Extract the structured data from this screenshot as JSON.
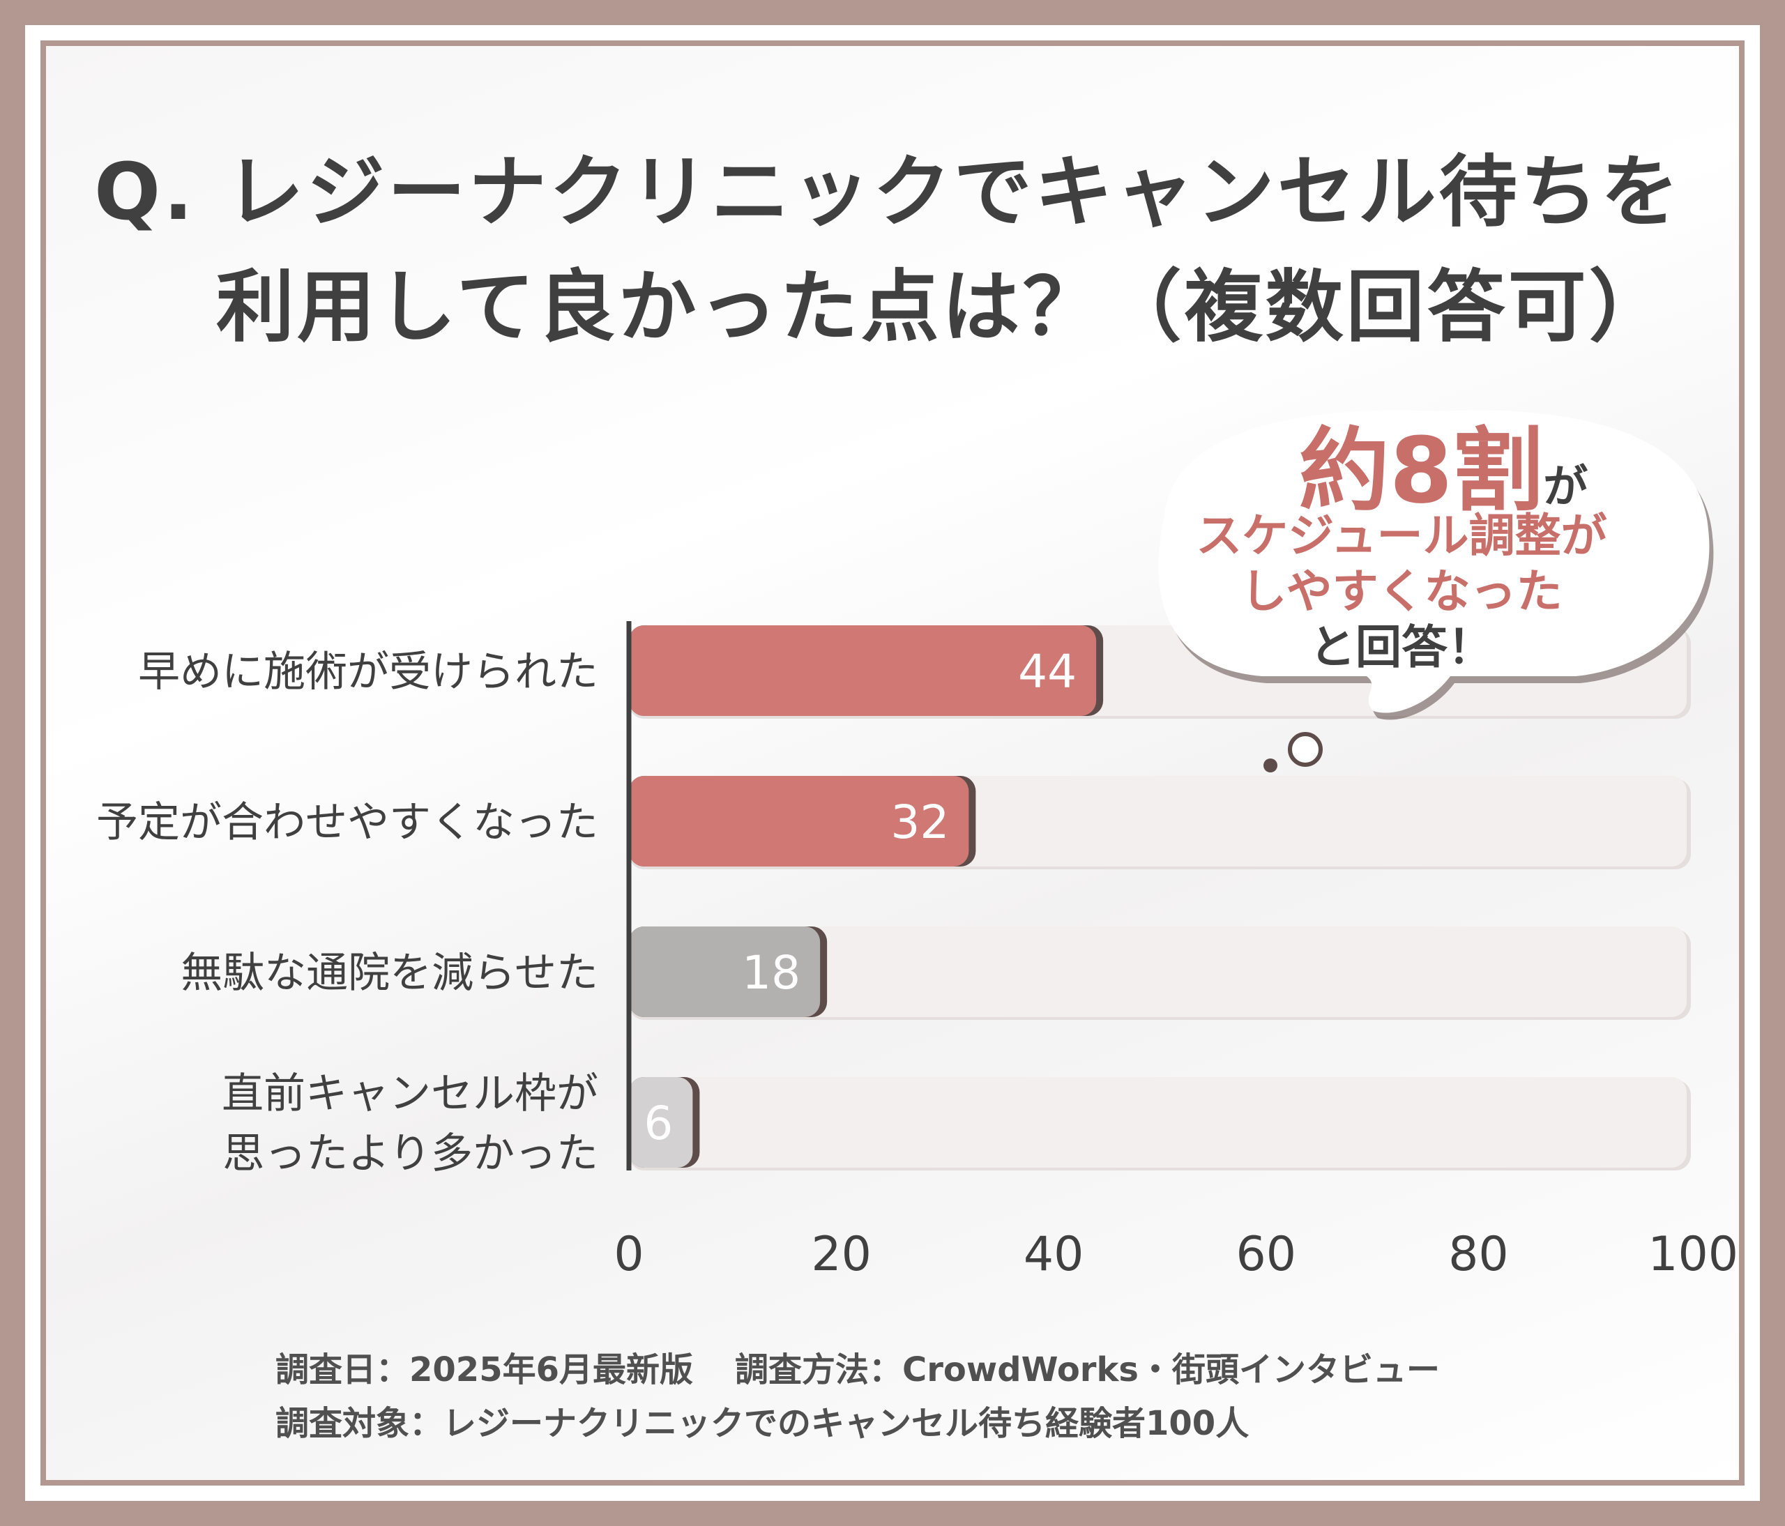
{
  "title": {
    "line1": "Q. レジーナクリニックでキャンセル待ちを",
    "line2": "利用して良かった点は？（複数回答可）"
  },
  "callout": {
    "big": "約8割",
    "ga": "が",
    "line2": "スケジュール調整が",
    "line3": "しやすくなった",
    "line4": "と回答！"
  },
  "footer": {
    "date": "調査日：2025年6月最新版",
    "method": "調査方法：CrowdWorks・街頭インタビュー",
    "target": "調査対象：レジーナクリニックでのキャンセル待ち経験者100人"
  },
  "chart_data": {
    "type": "bar",
    "orientation": "horizontal",
    "categories": [
      [
        "早めに施術が受けられた"
      ],
      [
        "予定が合わせやすくなった"
      ],
      [
        "無駄な通院を減らせた"
      ],
      [
        "直前キャンセル枠が",
        "思ったより多かった"
      ]
    ],
    "values": [
      44,
      32,
      18,
      6
    ],
    "xlim": [
      0,
      100
    ],
    "xticks": [
      0,
      20,
      40,
      60,
      80,
      100
    ],
    "grid": false,
    "bar_colors": [
      "#cf7874",
      "#cf7874",
      "#b3b0b0",
      "#d3d1d1"
    ],
    "track_color": "#f3efee",
    "shadow_color": "#5e4c4a",
    "axis_color": "#404040"
  }
}
